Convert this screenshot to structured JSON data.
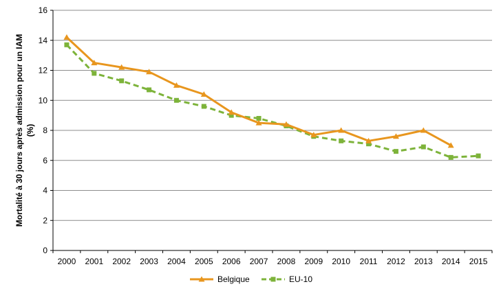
{
  "chart_data": {
    "type": "line",
    "ylabel_lines": [
      "Mortalité à 30 jours après admission pour un IAM",
      "(%)"
    ],
    "ylim": [
      0,
      16
    ],
    "yticks": [
      0,
      2,
      4,
      6,
      8,
      10,
      12,
      14,
      16
    ],
    "grid": true,
    "legend_position": "bottom",
    "categories": [
      "2000",
      "2001",
      "2002",
      "2003",
      "2004",
      "2005",
      "2006",
      "2007",
      "2008",
      "2009",
      "2010",
      "2011",
      "2012",
      "2013",
      "2014",
      "2015"
    ],
    "series": [
      {
        "name": "Belgique",
        "color": "#E8961E",
        "marker": "triangle",
        "dashed": false,
        "values": [
          14.2,
          12.5,
          12.2,
          11.9,
          11.0,
          10.4,
          9.2,
          8.5,
          8.4,
          7.7,
          8.0,
          7.3,
          7.6,
          8.0,
          7.0,
          null
        ]
      },
      {
        "name": "EU-10",
        "color": "#7DB33A",
        "marker": "square",
        "dashed": true,
        "values": [
          13.7,
          11.8,
          11.3,
          10.7,
          10.0,
          9.6,
          9.0,
          8.8,
          8.3,
          7.6,
          7.3,
          7.1,
          6.6,
          6.9,
          6.2,
          6.3
        ]
      }
    ]
  }
}
